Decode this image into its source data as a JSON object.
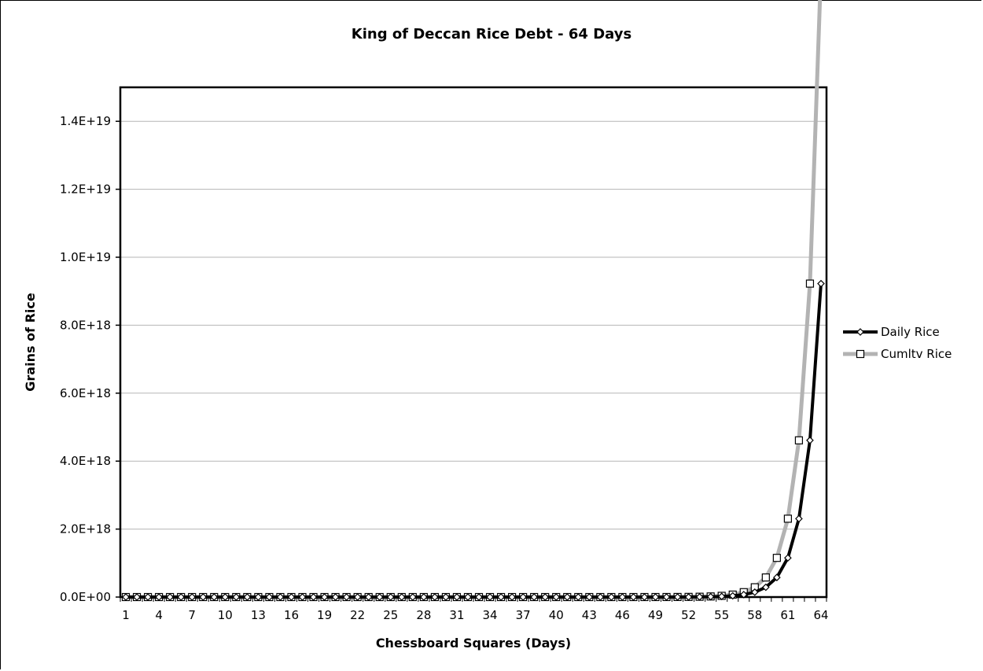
{
  "chart_data": {
    "type": "line",
    "title": "King of Deccan Rice Debt - 64 Days",
    "xlabel": "Chessboard Squares (Days)",
    "ylabel": "Grains of Rice",
    "x": [
      1,
      2,
      3,
      4,
      5,
      6,
      7,
      8,
      9,
      10,
      11,
      12,
      13,
      14,
      15,
      16,
      17,
      18,
      19,
      20,
      21,
      22,
      23,
      24,
      25,
      26,
      27,
      28,
      29,
      30,
      31,
      32,
      33,
      34,
      35,
      36,
      37,
      38,
      39,
      40,
      41,
      42,
      43,
      44,
      45,
      46,
      47,
      48,
      49,
      50,
      51,
      52,
      53,
      54,
      55,
      56,
      57,
      58,
      59,
      60,
      61,
      62,
      63,
      64
    ],
    "x_tick_labels": [
      "1",
      "4",
      "7",
      "10",
      "13",
      "16",
      "19",
      "22",
      "25",
      "28",
      "31",
      "34",
      "37",
      "40",
      "43",
      "46",
      "49",
      "52",
      "55",
      "58",
      "61",
      "64"
    ],
    "y_tick_labels": [
      "0.0E+00",
      "2.0E+18",
      "4.0E+18",
      "6.0E+18",
      "8.0E+18",
      "1.0E+19",
      "1.2E+19",
      "1.4E+19"
    ],
    "ylim": [
      0,
      1.5e+19
    ],
    "y_ticks": [
      0,
      2e+18,
      4e+18,
      6e+18,
      8e+18,
      1e+19,
      1.2e+19,
      1.4e+19
    ],
    "grid": "horizontal",
    "legend_position": "right",
    "series": [
      {
        "name": "Daily Rice",
        "color": "#000000",
        "marker": "diamond",
        "formula": "2^(day-1)",
        "values": [
          1,
          2,
          4,
          8,
          16,
          32,
          64,
          128,
          256,
          512,
          1024,
          2048,
          4096,
          8192,
          16384,
          32768,
          65536,
          131072,
          262144,
          524288,
          1048576,
          2097152,
          4194304,
          8388608,
          16777216,
          33554432,
          67108864,
          134217728,
          268435456,
          536870912,
          1073741824,
          2147483648,
          4294967296,
          8589934592,
          17179869184,
          34359738368,
          68719476736,
          137438953472,
          274877906944,
          549755813888,
          1099511627776,
          2199023255552,
          4398046511104,
          8796093022208,
          17592186044416,
          35184372088832,
          70368744177664,
          140737488355328,
          281474976710656,
          562949953421312,
          1125899906842624,
          2251799813685248,
          4503599627370496,
          9007199254740992,
          18014398509481984,
          36028797018963968,
          72057594037927936,
          144115188075855872,
          288230376151711744,
          576460752303423488,
          1152921504606846976,
          2305843009213693952,
          4611686018427387904,
          9223372036854775808
        ]
      },
      {
        "name": "Cumltv Rice",
        "color": "#b3b3b3",
        "marker": "square",
        "formula": "2^day - 1",
        "values": [
          1,
          3,
          7,
          15,
          31,
          63,
          127,
          255,
          511,
          1023,
          2047,
          4095,
          8191,
          16383,
          32767,
          65535,
          131071,
          262143,
          524287,
          1048575,
          2097151,
          4194303,
          8388607,
          16777215,
          33554431,
          67108863,
          134217727,
          268435455,
          536870911,
          1073741823,
          2147483647,
          4294967295,
          8589934591,
          17179869183,
          34359738367,
          68719476735,
          137438953471,
          274877906943,
          549755813887,
          1099511627775,
          2199023255551,
          4398046511103,
          8796093022207,
          17592186044415,
          35184372088831,
          70368744177663,
          140737488355327,
          281474976710655,
          562949953421311,
          1125899906842623,
          2251799813685247,
          4503599627370495,
          9007199254740991,
          18014398509481983,
          36028797018963967,
          72057594037927935,
          144115188075855871,
          288230376151711743,
          576460752303423487,
          1152921504606846975,
          2305843009213693951,
          4611686018427387903,
          9223372036854775807,
          18446744073709551615
        ]
      }
    ]
  }
}
